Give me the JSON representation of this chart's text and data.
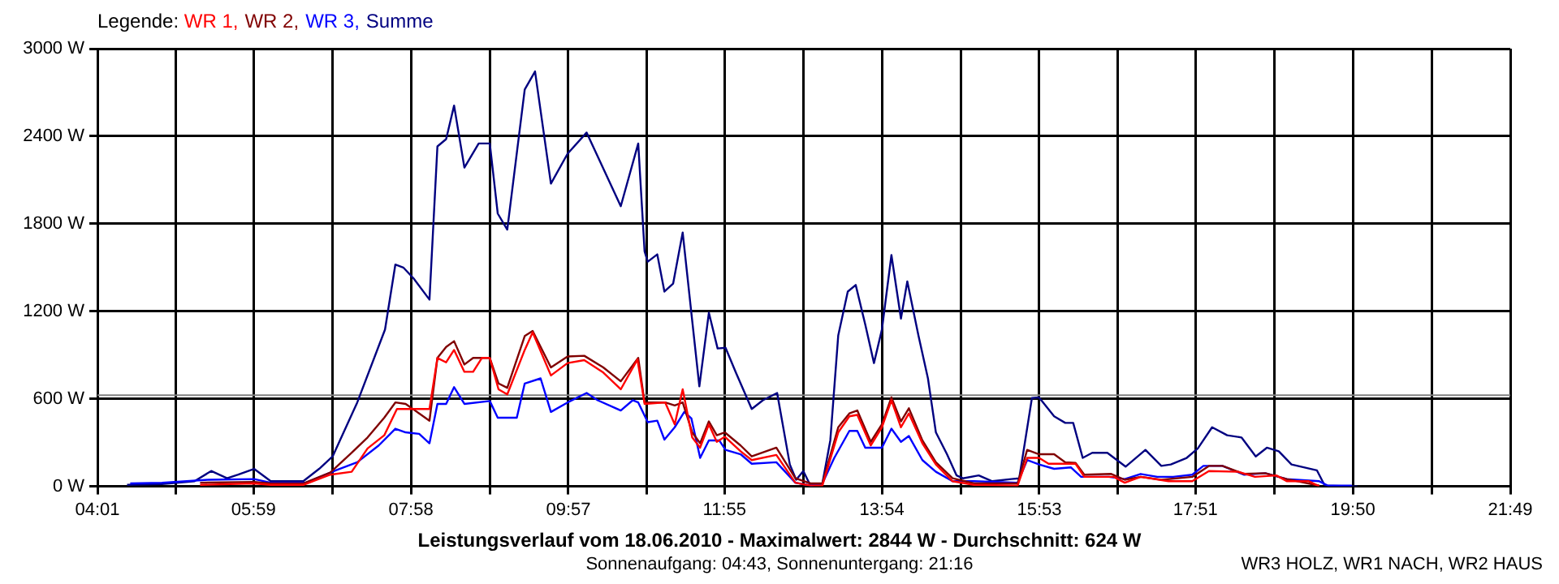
{
  "chart_data": {
    "type": "line",
    "title": "Leistungsverlauf vom 18.06.2010 - Maximalwert: 2844 W - Durchschnitt: 624 W",
    "subtitle": "Sonnenaufgang: 04:43, Sonnenuntergang: 21:16",
    "annotations": [
      "WR3 HOLZ, WR1 NACH, WR2 HAUS"
    ],
    "legend_title": "Legende:",
    "legend": "top left",
    "grid": true,
    "marker": "none",
    "line_style": "solid",
    "xlim": [
      4.0167,
      21.8167
    ],
    "xticks": [
      {
        "value": 4.0167,
        "label": "04:01"
      },
      {
        "value": 5.0,
        "label": null
      },
      {
        "value": 5.9833,
        "label": "05:59"
      },
      {
        "value": 6.975,
        "label": null
      },
      {
        "value": 7.9667,
        "label": "07:58"
      },
      {
        "value": 8.958,
        "label": null
      },
      {
        "value": 9.95,
        "label": "09:57"
      },
      {
        "value": 10.933,
        "label": null
      },
      {
        "value": 11.9167,
        "label": "11:55"
      },
      {
        "value": 12.908,
        "label": null
      },
      {
        "value": 13.9,
        "label": "13:54"
      },
      {
        "value": 14.892,
        "label": null
      },
      {
        "value": 15.8833,
        "label": "15:53"
      },
      {
        "value": 16.867,
        "label": null
      },
      {
        "value": 17.85,
        "label": "17:51"
      },
      {
        "value": 18.842,
        "label": null
      },
      {
        "value": 19.8333,
        "label": "19:50"
      },
      {
        "value": 20.825,
        "label": null
      },
      {
        "value": 21.8167,
        "label": "21:49"
      }
    ],
    "ylim": [
      0,
      3000
    ],
    "yticks": [
      {
        "value": 0,
        "label": "0 W"
      },
      {
        "value": 600,
        "label": "600 W"
      },
      {
        "value": 1200,
        "label": "1200 W"
      },
      {
        "value": 1800,
        "label": "1800 W"
      },
      {
        "value": 2400,
        "label": "2400 W"
      },
      {
        "value": 3000,
        "label": "3000 W"
      }
    ],
    "ref_lines": [
      {
        "axis": "y",
        "value": 624,
        "color": "#808080"
      }
    ],
    "series": [
      {
        "name": "WR 1,",
        "color": "#ff0000",
        "x": [
          5.31,
          5.99,
          6.2,
          6.61,
          6.95,
          7.22,
          7.42,
          7.63,
          7.79,
          8.2,
          8.3,
          8.41,
          8.51,
          8.64,
          8.75,
          8.86,
          8.96,
          9.07,
          9.18,
          9.4,
          9.5,
          9.73,
          9.94,
          10.15,
          10.39,
          10.61,
          10.82,
          10.91,
          11.17,
          11.29,
          11.39,
          11.51,
          11.61,
          11.72,
          11.82,
          11.92,
          12.12,
          12.26,
          12.57,
          12.81,
          13.0,
          13.15,
          13.35,
          13.49,
          13.59,
          13.76,
          13.9,
          14.02,
          14.14,
          14.24,
          14.41,
          14.58,
          14.79,
          15.06,
          15.61,
          15.73,
          15.88,
          16.0,
          16.34,
          16.45,
          16.82,
          16.96,
          17.16,
          17.51,
          17.81,
          18.02,
          18.39,
          18.6,
          18.87,
          19.0,
          19.28,
          19.41
        ],
        "values": [
          10,
          20,
          10,
          10,
          80,
          100,
          260,
          350,
          530,
          530,
          880,
          850,
          935,
          785,
          785,
          880,
          880,
          665,
          630,
          935,
          1055,
          760,
          845,
          865,
          780,
          665,
          870,
          565,
          575,
          425,
          665,
          335,
          265,
          425,
          305,
          340,
          240,
          180,
          215,
          25,
          5,
          5,
          370,
          480,
          490,
          280,
          405,
          590,
          405,
          500,
          295,
          150,
          35,
          10,
          5,
          195,
          195,
          155,
          155,
          65,
          65,
          25,
          65,
          35,
          35,
          105,
          100,
          65,
          75,
          35,
          35,
          0
        ]
      },
      {
        "name": "WR 2,",
        "color": "#800000",
        "x": [
          5.31,
          5.99,
          6.2,
          6.61,
          6.95,
          7.22,
          7.42,
          7.63,
          7.77,
          7.9,
          8.2,
          8.3,
          8.41,
          8.51,
          8.64,
          8.75,
          8.96,
          9.07,
          9.18,
          9.4,
          9.5,
          9.73,
          9.94,
          10.15,
          10.39,
          10.61,
          10.83,
          10.91,
          11.17,
          11.29,
          11.39,
          11.51,
          11.61,
          11.72,
          11.82,
          11.92,
          12.12,
          12.26,
          12.57,
          12.81,
          13.0,
          13.15,
          13.35,
          13.49,
          13.59,
          13.76,
          13.9,
          14.02,
          14.14,
          14.24,
          14.41,
          14.58,
          14.79,
          15.06,
          15.61,
          15.73,
          15.88,
          16.07,
          16.21,
          16.34,
          16.45,
          16.79,
          16.96,
          17.16,
          17.42,
          17.81,
          18.02,
          18.19,
          18.46,
          18.73,
          19.0,
          19.41
        ],
        "values": [
          25,
          30,
          20,
          20,
          95,
          230,
          335,
          470,
          575,
          565,
          450,
          880,
          955,
          995,
          835,
          880,
          880,
          705,
          675,
          1030,
          1065,
          815,
          890,
          895,
          815,
          720,
          880,
          575,
          575,
          555,
          575,
          370,
          295,
          445,
          350,
          370,
          280,
          205,
          265,
          55,
          20,
          20,
          405,
          500,
          520,
          305,
          425,
          610,
          445,
          535,
          315,
          165,
          55,
          20,
          20,
          250,
          220,
          220,
          165,
          160,
          80,
          85,
          45,
          65,
          45,
          65,
          140,
          140,
          85,
          90,
          50,
          5
        ]
      },
      {
        "name": "WR 3,",
        "color": "#0000ff",
        "x": [
          4.43,
          4.83,
          5.41,
          5.99,
          6.2,
          6.64,
          7.02,
          7.29,
          7.56,
          7.77,
          7.9,
          8.07,
          8.2,
          8.3,
          8.41,
          8.51,
          8.64,
          8.96,
          9.06,
          9.3,
          9.4,
          9.6,
          9.73,
          9.94,
          10.18,
          10.32,
          10.61,
          10.76,
          10.83,
          10.95,
          11.07,
          11.16,
          11.29,
          11.41,
          11.5,
          11.61,
          11.72,
          11.85,
          11.93,
          12.12,
          12.26,
          12.57,
          12.81,
          13.01,
          13.15,
          13.3,
          13.49,
          13.59,
          13.69,
          13.9,
          14.02,
          14.14,
          14.24,
          14.41,
          14.58,
          14.79,
          15.06,
          15.61,
          15.73,
          15.88,
          16.07,
          16.28,
          16.41,
          16.76,
          16.96,
          17.16,
          17.37,
          17.57,
          17.81,
          17.95,
          18.19,
          18.46,
          18.73,
          19.0,
          19.41,
          19.52,
          19.82
        ],
        "values": [
          20,
          25,
          45,
          50,
          25,
          25,
          110,
          165,
          280,
          395,
          370,
          360,
          295,
          565,
          565,
          680,
          565,
          585,
          470,
          470,
          705,
          740,
          510,
          575,
          640,
          590,
          520,
          590,
          575,
          440,
          450,
          320,
          405,
          510,
          465,
          195,
          315,
          315,
          250,
          220,
          155,
          165,
          25,
          5,
          20,
          195,
          380,
          380,
          265,
          265,
          395,
          305,
          345,
          180,
          100,
          35,
          35,
          25,
          180,
          150,
          120,
          130,
          65,
          65,
          50,
          85,
          65,
          65,
          80,
          140,
          140,
          80,
          90,
          50,
          35,
          5,
          5
        ]
      },
      {
        "name": "Summe",
        "color": "#000080",
        "x": [
          4.39,
          4.83,
          5.24,
          5.45,
          5.65,
          5.79,
          5.99,
          6.2,
          6.61,
          6.81,
          6.98,
          7.29,
          7.64,
          7.77,
          7.87,
          8.0,
          8.2,
          8.3,
          8.41,
          8.51,
          8.64,
          8.82,
          8.96,
          9.06,
          9.18,
          9.4,
          9.53,
          9.73,
          9.94,
          10.18,
          10.32,
          10.61,
          10.83,
          10.91,
          10.95,
          11.07,
          11.16,
          11.27,
          11.39,
          11.5,
          11.6,
          11.72,
          11.83,
          11.93,
          12.06,
          12.26,
          12.4,
          12.58,
          12.74,
          12.82,
          12.91,
          13.0,
          13.15,
          13.25,
          13.35,
          13.47,
          13.57,
          13.69,
          13.8,
          13.9,
          14.02,
          14.14,
          14.22,
          14.36,
          14.48,
          14.58,
          14.72,
          14.84,
          14.92,
          15.12,
          15.29,
          15.53,
          15.63,
          15.79,
          15.88,
          16.07,
          16.21,
          16.31,
          16.43,
          16.55,
          16.74,
          16.97,
          17.22,
          17.42,
          17.54,
          17.74,
          17.88,
          18.06,
          18.25,
          18.43,
          18.61,
          18.75,
          18.9,
          19.06,
          19.38,
          19.48,
          19.89
        ],
        "values": [
          10,
          15,
          35,
          105,
          55,
          80,
          120,
          35,
          35,
          120,
          205,
          575,
          1075,
          1520,
          1500,
          1425,
          1280,
          2330,
          2380,
          2610,
          2185,
          2350,
          2350,
          1870,
          1760,
          2720,
          2844,
          2075,
          2280,
          2425,
          2260,
          1920,
          2350,
          1610,
          1540,
          1590,
          1335,
          1390,
          1740,
          1185,
          685,
          1190,
          945,
          950,
          780,
          530,
          590,
          640,
          150,
          45,
          105,
          5,
          20,
          315,
          1035,
          1335,
          1380,
          1110,
          845,
          1075,
          1585,
          1150,
          1405,
          1035,
          740,
          370,
          220,
          75,
          55,
          75,
          35,
          50,
          55,
          605,
          610,
          480,
          435,
          435,
          195,
          230,
          230,
          135,
          250,
          140,
          150,
          195,
          260,
          405,
          350,
          335,
          205,
          265,
          240,
          150,
          110,
          5,
          0
        ]
      }
    ]
  }
}
